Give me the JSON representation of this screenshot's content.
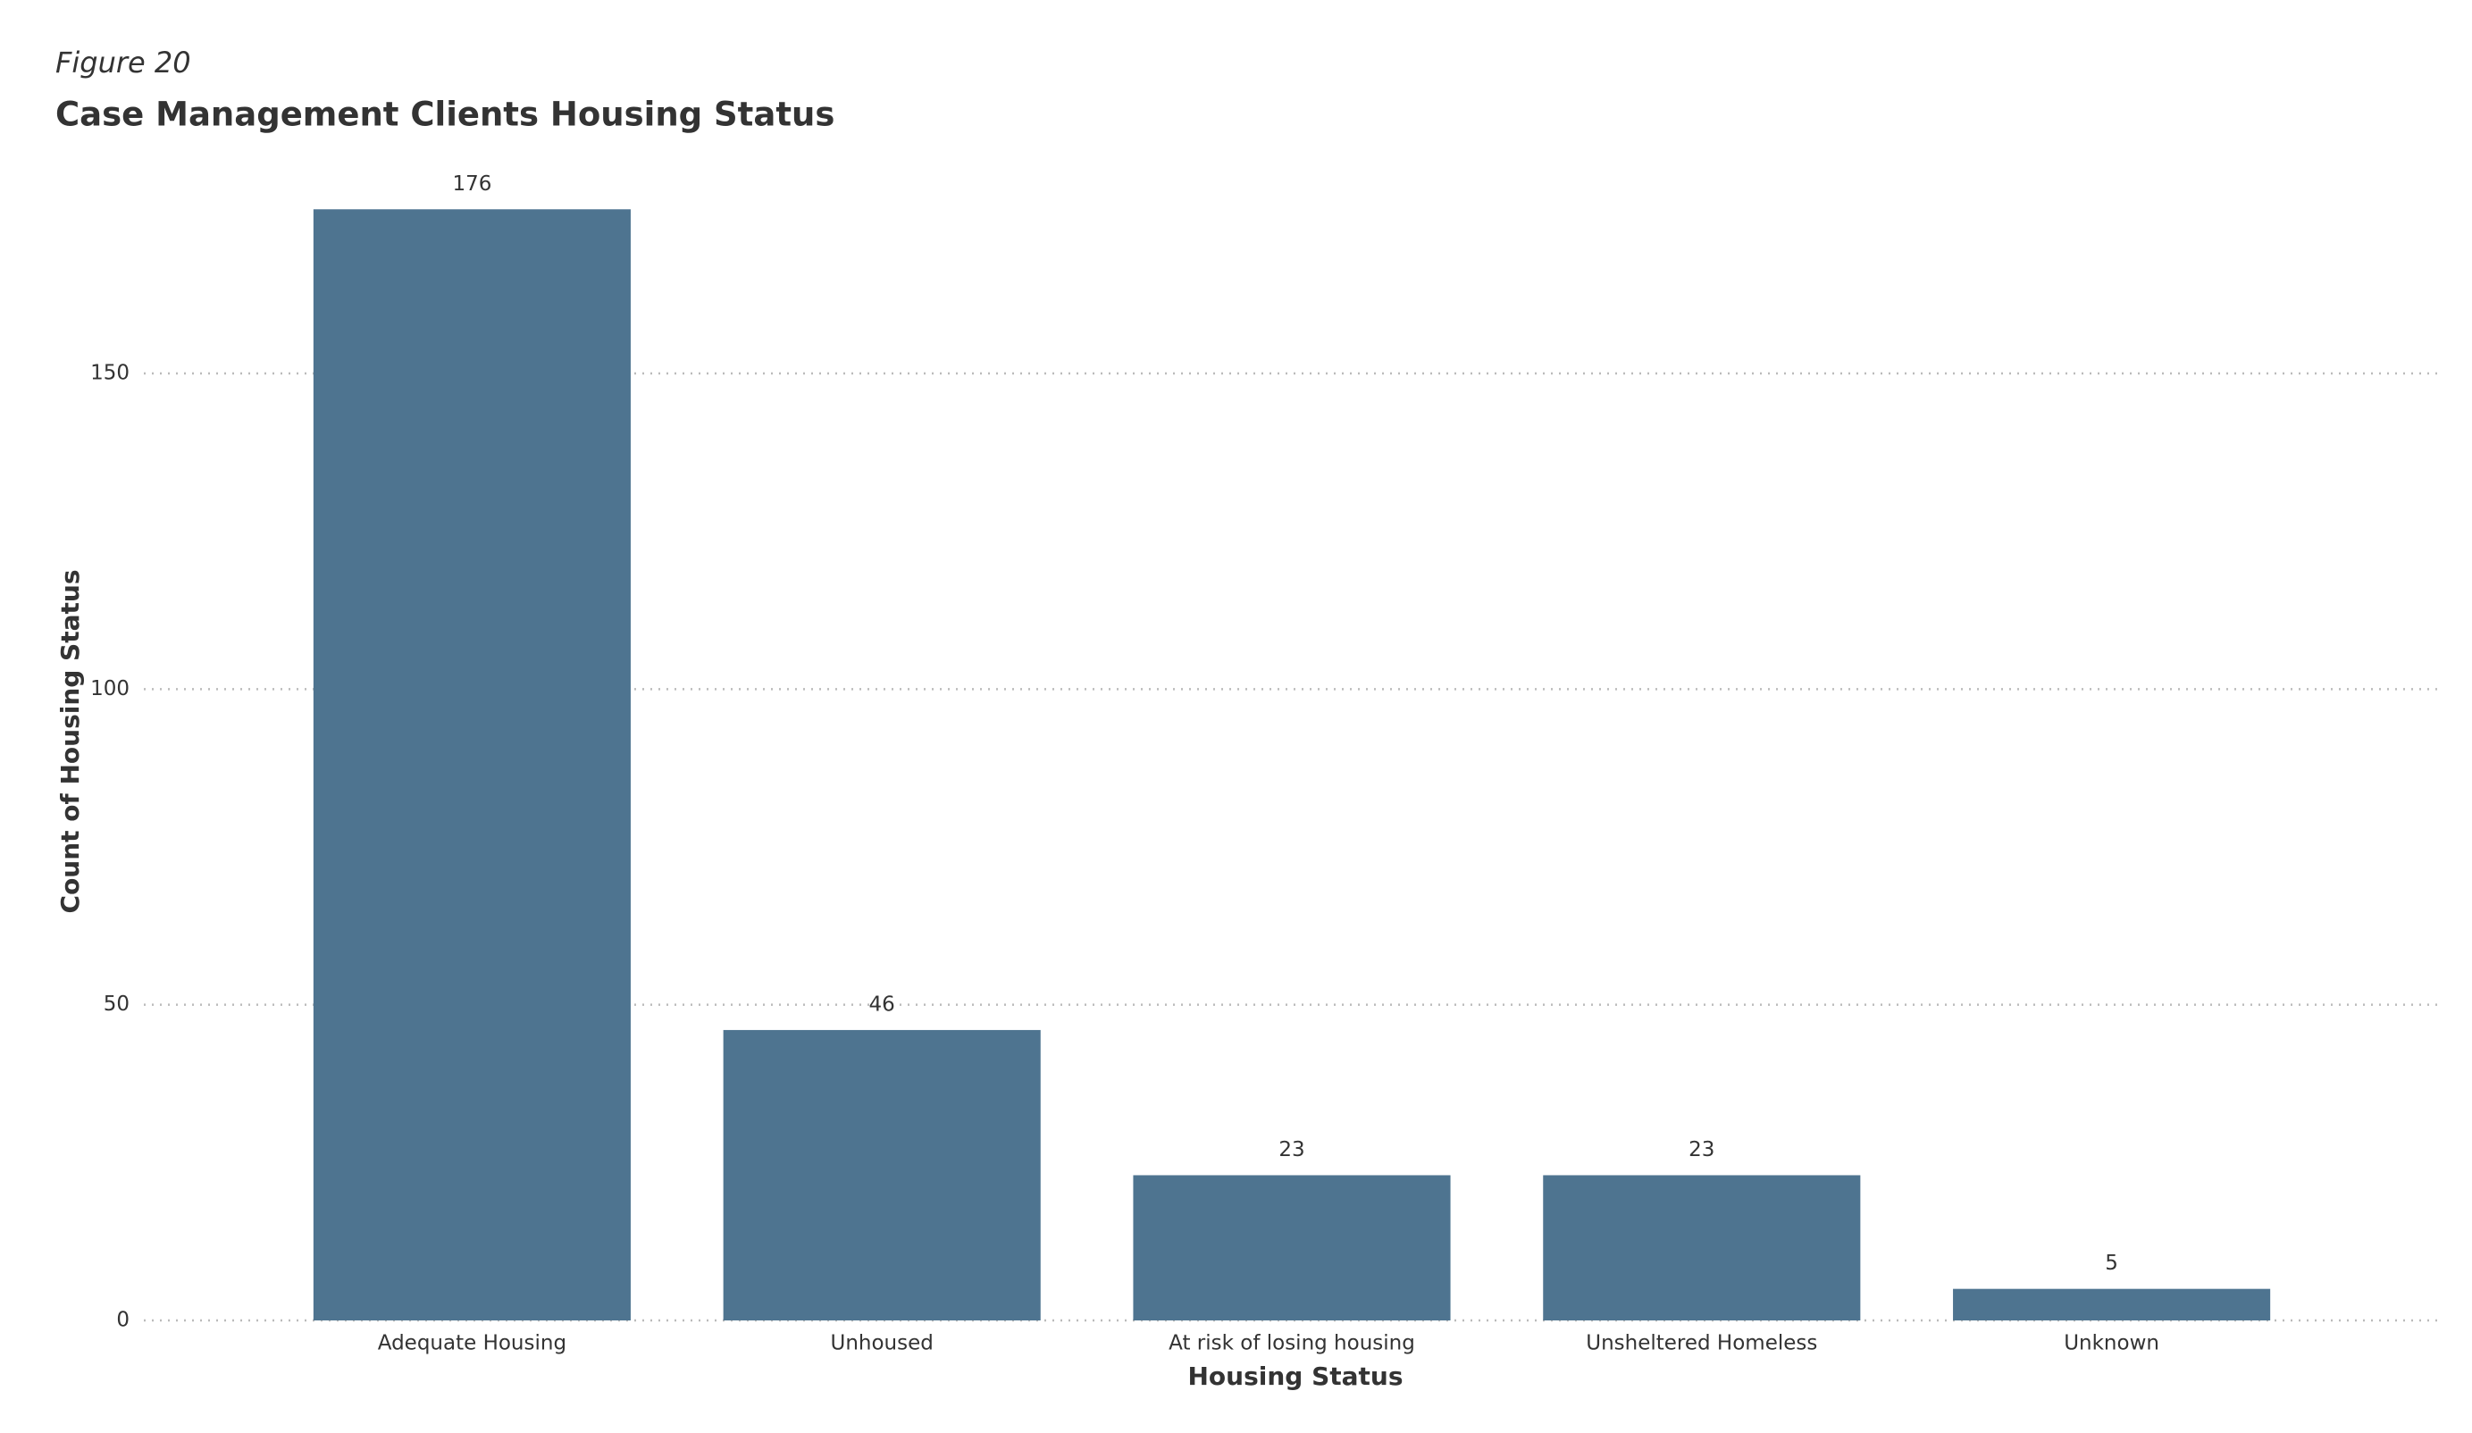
{
  "chart_data": {
    "type": "bar",
    "figure_label": "Figure 20",
    "title": "Case Management Clients Housing Status",
    "x_label": "Housing Status",
    "y_label": "Count of Housing Status",
    "categories": [
      "Adequate Housing",
      "Unhoused",
      "At risk of losing housing",
      "Unsheltered Homeless",
      "Unknown"
    ],
    "values": [
      176,
      46,
      23,
      23,
      5
    ],
    "color": "#4e7490",
    "ylim": [
      0,
      180
    ],
    "yticks": [
      0,
      50,
      100,
      150
    ],
    "grid": true
  }
}
